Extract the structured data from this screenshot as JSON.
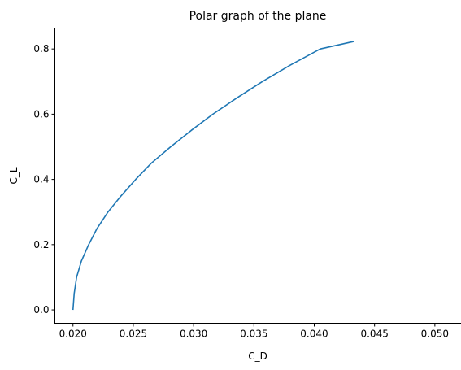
{
  "chart_data": {
    "type": "line",
    "title": "Polar graph of the plane",
    "xlabel": "C_D",
    "ylabel": "C_L",
    "xlim": [
      0.0185,
      0.0522
    ],
    "ylim": [
      -0.041,
      0.864
    ],
    "grid": false,
    "x_ticks": [
      0.02,
      0.025,
      0.03,
      0.035,
      0.04,
      0.045,
      0.05
    ],
    "x_tick_labels": [
      "0.020",
      "0.025",
      "0.030",
      "0.035",
      "0.040",
      "0.045",
      "0.050"
    ],
    "y_ticks": [
      0.0,
      0.2,
      0.4,
      0.6,
      0.8
    ],
    "y_tick_labels": [
      "0.0",
      "0.2",
      "0.4",
      "0.6",
      "0.8"
    ],
    "series": [
      {
        "color": "#1f77b4",
        "points": [
          {
            "cd": 0.02,
            "cl": 0.0
          },
          {
            "cd": 0.0201,
            "cl": 0.05
          },
          {
            "cd": 0.0203,
            "cl": 0.1
          },
          {
            "cd": 0.0207,
            "cl": 0.15
          },
          {
            "cd": 0.0213,
            "cl": 0.2
          },
          {
            "cd": 0.022,
            "cl": 0.25
          },
          {
            "cd": 0.0229,
            "cl": 0.3
          },
          {
            "cd": 0.024,
            "cl": 0.35
          },
          {
            "cd": 0.0252,
            "cl": 0.4
          },
          {
            "cd": 0.0265,
            "cl": 0.45
          },
          {
            "cd": 0.0281,
            "cl": 0.5
          },
          {
            "cd": 0.0298,
            "cl": 0.55
          },
          {
            "cd": 0.0316,
            "cl": 0.6
          },
          {
            "cd": 0.0336,
            "cl": 0.65
          },
          {
            "cd": 0.0357,
            "cl": 0.7
          },
          {
            "cd": 0.038,
            "cl": 0.75
          },
          {
            "cd": 0.0405,
            "cl": 0.8
          },
          {
            "cd": 0.0433,
            "cl": 0.823
          }
        ]
      }
    ]
  }
}
